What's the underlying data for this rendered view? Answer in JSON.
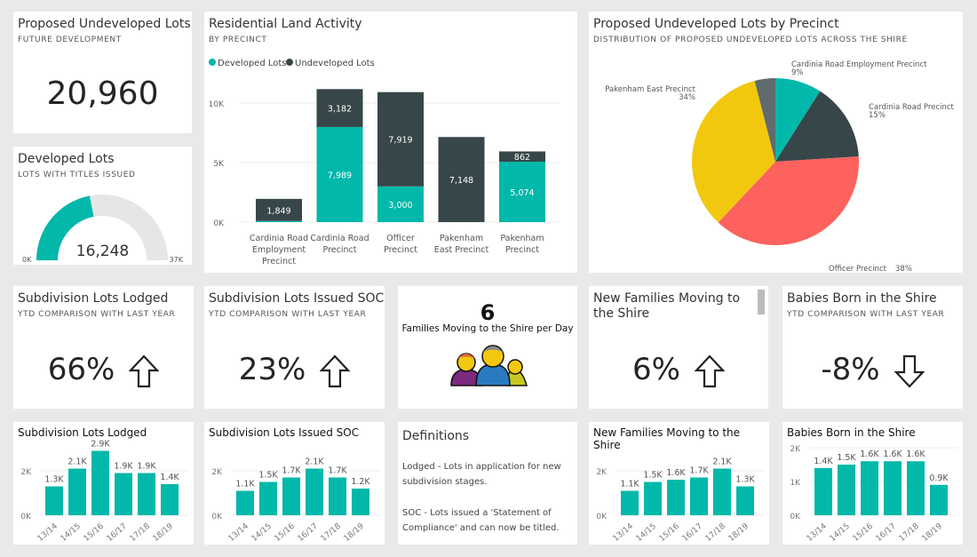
{
  "colors": {
    "teal": "#01b8aa",
    "dark": "#374649",
    "red": "#fd625e",
    "yellow": "#f2c80f",
    "gray": "#5f6b6d"
  },
  "proposed": {
    "title": "Proposed Undeveloped Lots",
    "subtitle": "FUTURE DEVELOPMENT",
    "value": "20,960"
  },
  "developed": {
    "title": "Developed Lots",
    "subtitle": "LOTS WITH TITLES ISSUED",
    "value": "16,248",
    "min": "0K",
    "max": "37K",
    "fraction": 0.439
  },
  "chart_data": [
    {
      "type": "bar",
      "stacked": true,
      "title": "Residential Land Activity",
      "subtitle": "BY PRECINCT",
      "legend": "top-left",
      "categories": [
        [
          "Cardinia Road",
          "Employment",
          "Precinct"
        ],
        [
          "Cardinia Road",
          "Precinct"
        ],
        [
          "Officer",
          "Precinct"
        ],
        [
          "Pakenham",
          "East Precinct"
        ],
        [
          "Pakenham",
          "Precinct"
        ]
      ],
      "series": [
        {
          "name": "Developed Lots",
          "values": [
            100,
            7989,
            3000,
            0,
            5074
          ],
          "labels": [
            "",
            "7,989",
            "3,000",
            "",
            "5,074"
          ]
        },
        {
          "name": "Undeveloped Lots",
          "values": [
            1849,
            3182,
            7919,
            7148,
            862
          ],
          "labels": [
            "1,849",
            "3,182",
            "7,919",
            "7,148",
            "862"
          ]
        }
      ],
      "yticks": [
        "0K",
        "5K",
        "10K"
      ],
      "ylim": [
        0,
        11000
      ]
    },
    {
      "type": "pie",
      "title": "Proposed Undeveloped Lots by Precinct",
      "subtitle": "DISTRIBUTION OF PROPOSED UNDEVELOPED LOTS ACROSS THE SHIRE",
      "slices": [
        {
          "name": "Cardinia Road Employment Precinct",
          "pct": 9,
          "label": "9%"
        },
        {
          "name": "Cardinia Road Precinct",
          "pct": 15,
          "label": "15%"
        },
        {
          "name": "Officer Precinct",
          "pct": 38,
          "label": "38%"
        },
        {
          "name": "Pakenham East Precinct",
          "pct": 34,
          "label": "34%"
        },
        {
          "name": "",
          "pct": 4,
          "label": ""
        }
      ]
    },
    {
      "type": "bar",
      "title": "Subdivision Lots Lodged",
      "categories": [
        "13/14",
        "14/15",
        "15/16",
        "16/17",
        "17/18",
        "18/19"
      ],
      "values": [
        1.3,
        2.1,
        2.9,
        1.9,
        1.9,
        1.4
      ],
      "labels": [
        "1.3K",
        "2.1K",
        "2.9K",
        "1.9K",
        "1.9K",
        "1.4K"
      ],
      "yticks": [
        "0K",
        "2K"
      ],
      "ytickvals": [
        0,
        2
      ]
    },
    {
      "type": "bar",
      "title": "Subdivision Lots Issued SOC",
      "categories": [
        "13/14",
        "14/15",
        "15/16",
        "16/17",
        "17/18",
        "18/19"
      ],
      "values": [
        1.1,
        1.5,
        1.7,
        2.1,
        1.7,
        1.2
      ],
      "labels": [
        "1.1K",
        "1.5K",
        "1.7K",
        "2.1K",
        "1.7K",
        "1.2K"
      ],
      "yticks": [
        "0K",
        "2K"
      ],
      "ytickvals": [
        0,
        2
      ]
    },
    {
      "type": "bar",
      "title": "New Families Moving to the Shire",
      "categories": [
        "13/14",
        "14/15",
        "15/16",
        "16/17",
        "17/18",
        "18/19"
      ],
      "values": [
        1.1,
        1.5,
        1.6,
        1.7,
        2.1,
        1.3
      ],
      "labels": [
        "1.1K",
        "1.5K",
        "1.6K",
        "1.7K",
        "2.1K",
        "1.3K"
      ],
      "yticks": [
        "0K",
        "2K"
      ],
      "ytickvals": [
        0,
        2
      ]
    },
    {
      "type": "bar",
      "title": "Babies Born in the Shire",
      "categories": [
        "13/14",
        "14/15",
        "15/16",
        "16/17",
        "17/18",
        "18/19"
      ],
      "values": [
        1.4,
        1.5,
        1.6,
        1.6,
        1.6,
        0.9
      ],
      "labels": [
        "1.4K",
        "1.5K",
        "1.6K",
        "1.6K",
        "1.6K",
        "0.9K"
      ],
      "yticks": [
        "0K",
        "1K",
        "2K"
      ],
      "ytickvals": [
        0,
        1,
        2
      ]
    }
  ],
  "kpis": [
    {
      "title": "Subdivision Lots Lodged",
      "subtitle": "YTD COMPARISON WITH LAST YEAR",
      "value": "66%",
      "direction": "up"
    },
    {
      "title": "Subdivision Lots Issued SOC",
      "subtitle": "YTD COMPARISON WITH LAST YEAR",
      "value": "23%",
      "direction": "up"
    },
    {
      "title": "New Families Moving to the Shire",
      "subtitle": "",
      "value": "6%",
      "direction": "up"
    },
    {
      "title": "Babies Born in the Shire",
      "subtitle": "YTD COMPARISON WITH LAST YEAR",
      "value": "-8%",
      "direction": "down"
    }
  ],
  "families": {
    "value": "6",
    "label": "Families Moving to the Shire per Day",
    "icon": "family-icon"
  },
  "definitions": {
    "title": "Definitions",
    "items": [
      "Lodged - Lots in application for new subdivision stages.",
      "SOC - Lots issued a 'Statement of Compliance' and can now be titled."
    ]
  }
}
